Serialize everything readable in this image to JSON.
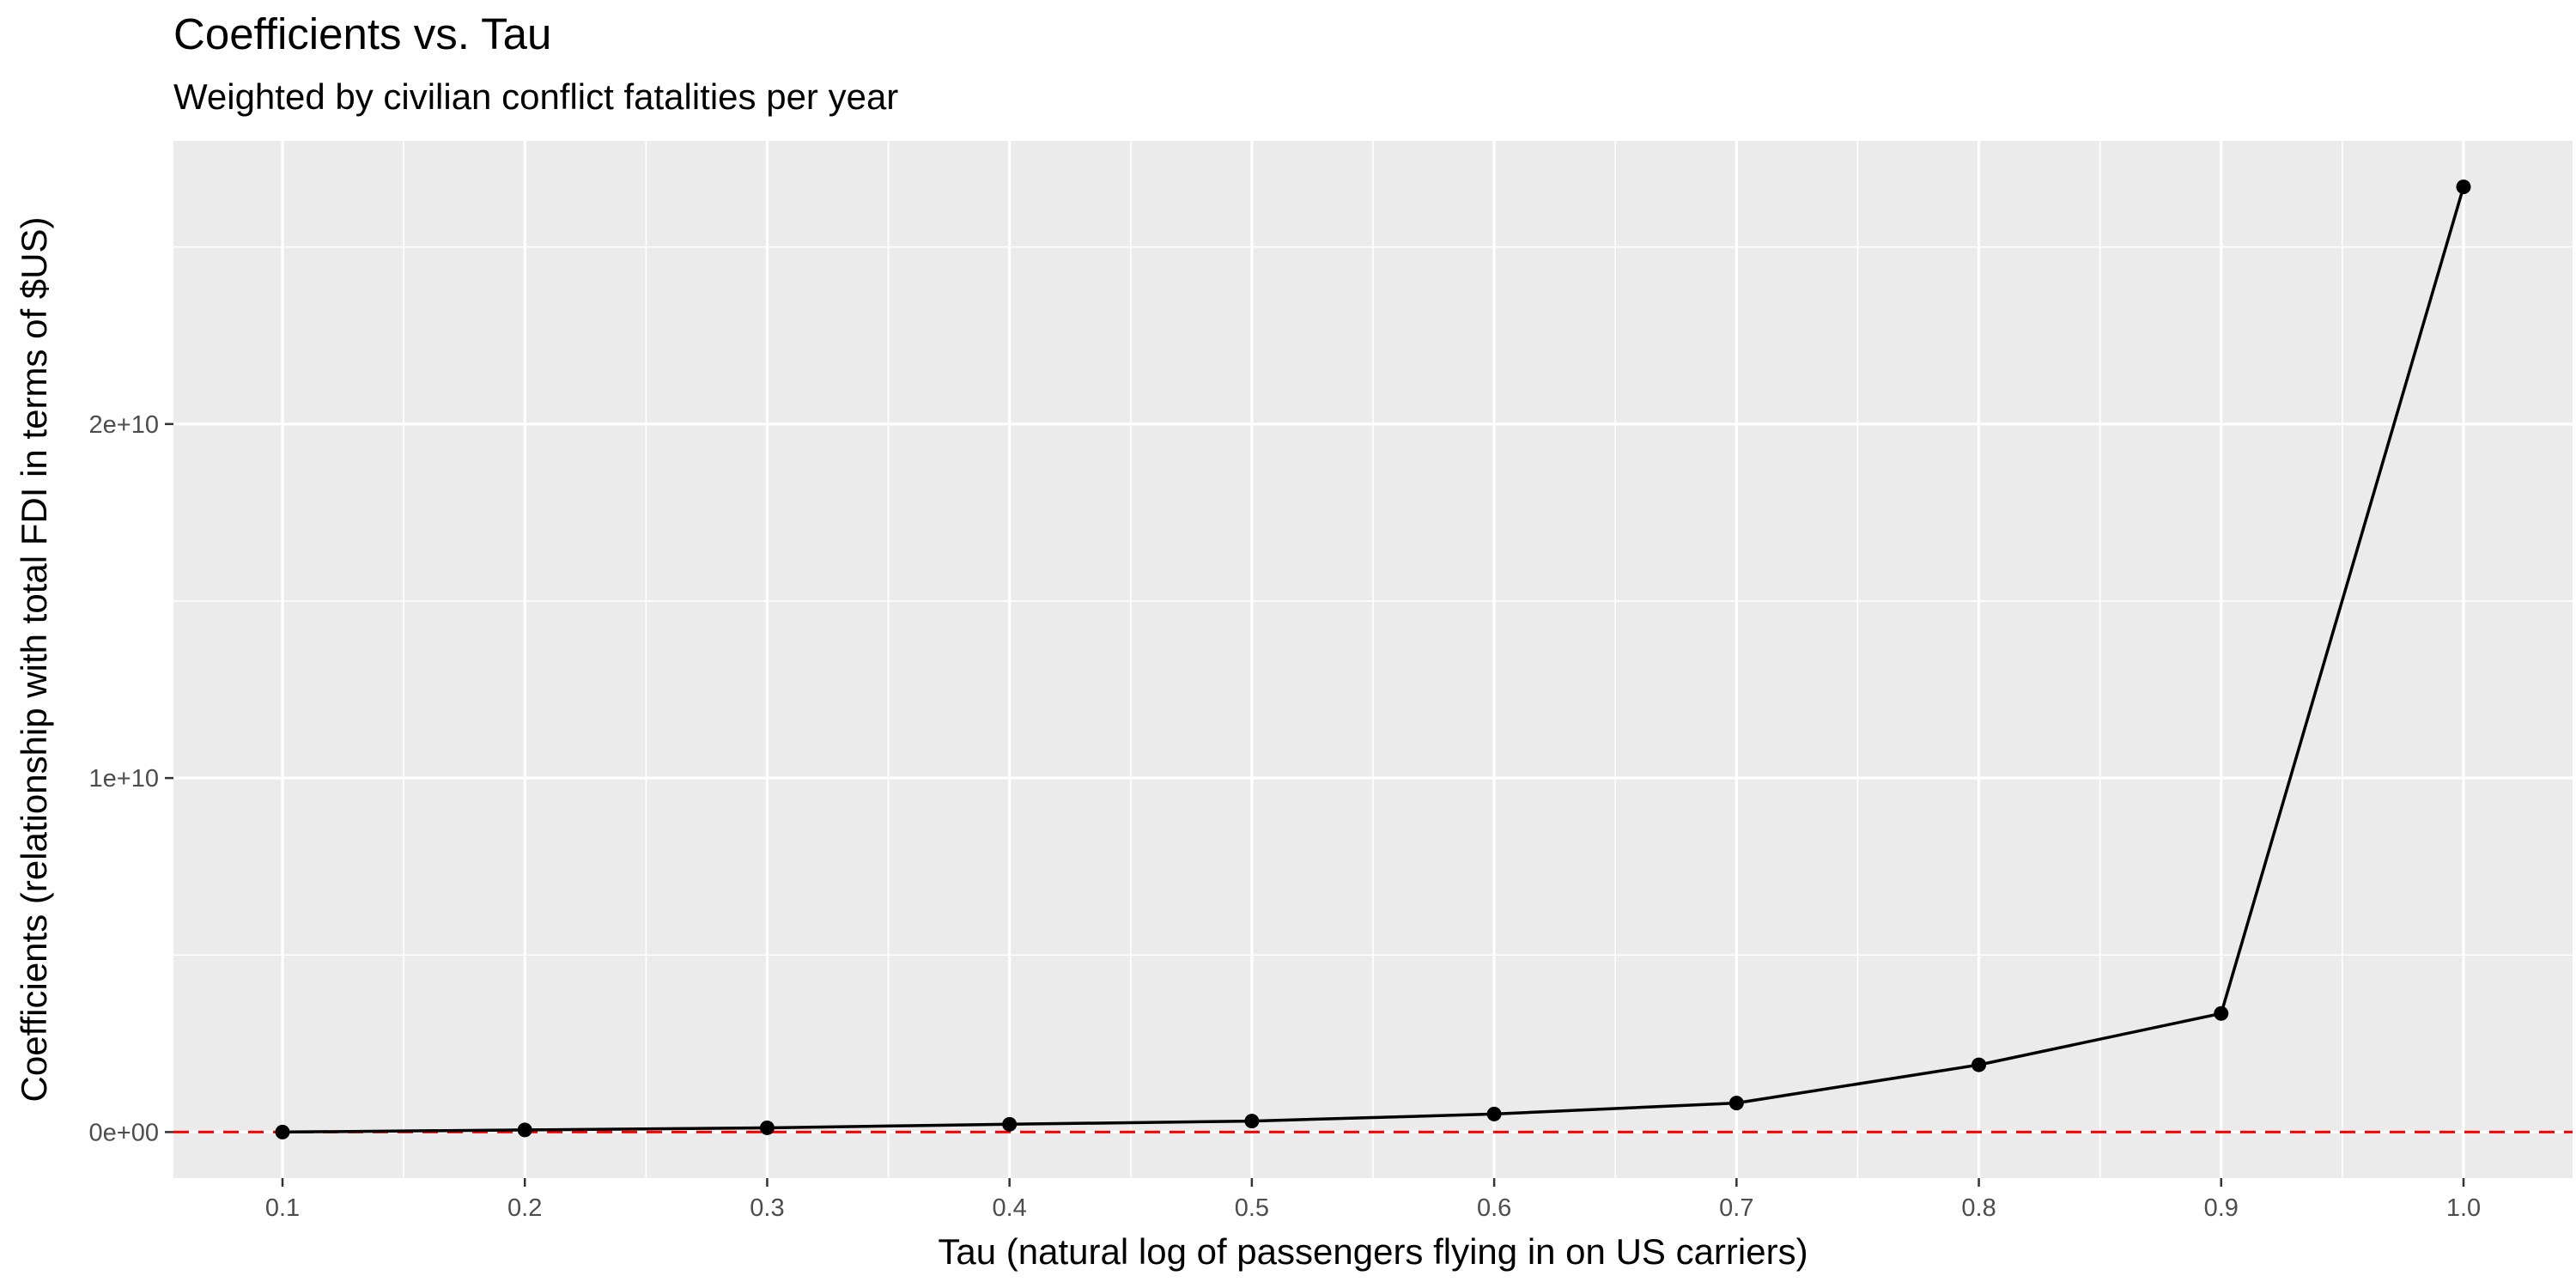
{
  "chart_data": {
    "type": "line",
    "title": "Coefficients vs. Tau",
    "subtitle": "Weighted by civilian conflict fatalities per year",
    "xlabel": "Tau (natural log of passengers flying in on US carriers)",
    "ylabel": "Coefficients (relationship with total FDI in terms of $US)",
    "x": [
      0.1,
      0.2,
      0.3,
      0.4,
      0.5,
      0.6,
      0.7,
      0.8,
      0.9,
      1.0
    ],
    "series": [
      {
        "values": [
          0,
          60000000,
          120000000,
          220000000,
          310000000,
          510000000,
          820000000,
          1900000000,
          3350000000,
          26700000000
        ]
      }
    ],
    "reference_line": {
      "y": 0,
      "style": "dashed",
      "color": "#ff0000"
    },
    "xlim": [
      0.055,
      1.045
    ],
    "ylim": [
      -1300000000,
      28000000000
    ],
    "x_ticks": [
      0.1,
      0.2,
      0.3,
      0.4,
      0.5,
      0.6,
      0.7,
      0.8,
      0.9,
      1.0
    ],
    "x_tick_labels": [
      "0.1",
      "0.2",
      "0.3",
      "0.4",
      "0.5",
      "0.6",
      "0.7",
      "0.8",
      "0.9",
      "1.0"
    ],
    "y_ticks": [
      0,
      10000000000,
      20000000000
    ],
    "y_tick_labels": [
      "0e+00",
      "1e+10",
      "2e+10"
    ],
    "grid": true,
    "legend": "none",
    "colors": {
      "panel": "#ebebeb",
      "grid": "#ffffff",
      "line": "#000000",
      "point": "#000000",
      "reference": "#ff0000"
    }
  }
}
